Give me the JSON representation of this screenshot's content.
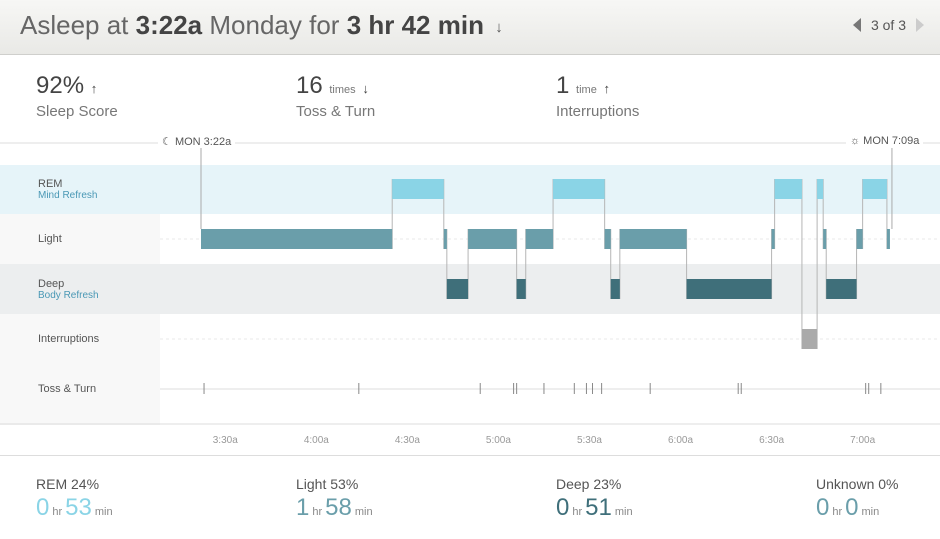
{
  "header": {
    "prefix": "Asleep at",
    "start_time": "3:22a",
    "day": "Monday",
    "for_word": "for",
    "duration": "3 hr 42 min",
    "pager": "3 of 3"
  },
  "stats": [
    {
      "value": "92%",
      "unit": "",
      "trend": "up",
      "label": "Sleep Score"
    },
    {
      "value": "16",
      "unit": "times",
      "trend": "down",
      "label": "Toss & Turn"
    },
    {
      "value": "1",
      "unit": "time",
      "trend": "up",
      "label": "Interruptions"
    }
  ],
  "markers": {
    "start": "MON 3:22a",
    "end": "MON 7:09a"
  },
  "rows": [
    {
      "label": "REM",
      "sub": "Mind Refresh"
    },
    {
      "label": "Light",
      "sub": ""
    },
    {
      "label": "Deep",
      "sub": "Body Refresh"
    },
    {
      "label": "Interruptions",
      "sub": ""
    },
    {
      "label": "Toss & Turn",
      "sub": ""
    }
  ],
  "time_ticks": [
    "3:30a",
    "4:00a",
    "4:30a",
    "5:00a",
    "5:30a",
    "6:00a",
    "6:30a",
    "7:00a"
  ],
  "colors": {
    "rem": "#8ad4e6",
    "light": "#6a9eaa",
    "deep": "#3f6f7a",
    "interruption": "#aaaaaa",
    "rem_band": "#e6f4f9",
    "deep_band": "#eceeef"
  },
  "chart_data": {
    "type": "hypnogram",
    "start_minutes": 202,
    "segments": [
      {
        "stage": "light",
        "start": 202,
        "end": 265
      },
      {
        "stage": "rem",
        "start": 265,
        "end": 282
      },
      {
        "stage": "light",
        "start": 282,
        "end": 283
      },
      {
        "stage": "deep",
        "start": 283,
        "end": 290
      },
      {
        "stage": "light",
        "start": 290,
        "end": 306
      },
      {
        "stage": "deep",
        "start": 306,
        "end": 309
      },
      {
        "stage": "light",
        "start": 309,
        "end": 318
      },
      {
        "stage": "rem",
        "start": 318,
        "end": 335
      },
      {
        "stage": "light",
        "start": 335,
        "end": 337
      },
      {
        "stage": "deep",
        "start": 337,
        "end": 340
      },
      {
        "stage": "light",
        "start": 340,
        "end": 362
      },
      {
        "stage": "deep",
        "start": 362,
        "end": 390
      },
      {
        "stage": "light",
        "start": 390,
        "end": 391
      },
      {
        "stage": "rem",
        "start": 391,
        "end": 400
      },
      {
        "stage": "interruption",
        "start": 400,
        "end": 405
      },
      {
        "stage": "rem",
        "start": 405,
        "end": 407
      },
      {
        "stage": "light",
        "start": 407,
        "end": 408
      },
      {
        "stage": "deep",
        "start": 408,
        "end": 418
      },
      {
        "stage": "light",
        "start": 418,
        "end": 420
      },
      {
        "stage": "rem",
        "start": 420,
        "end": 428
      },
      {
        "stage": "light",
        "start": 428,
        "end": 429
      }
    ],
    "toss_turn_minutes": [
      203,
      254,
      294,
      305,
      306,
      315,
      325,
      329,
      331,
      334,
      350,
      379,
      380,
      421,
      422,
      426
    ]
  },
  "summary": [
    {
      "label": "REM 24%",
      "hr": "0",
      "hr_unit": "hr",
      "min": "53",
      "min_unit": "min",
      "color": "#8ad4e6"
    },
    {
      "label": "Light 53%",
      "hr": "1",
      "hr_unit": "hr",
      "min": "58",
      "min_unit": "min",
      "color": "#6a9eaa"
    },
    {
      "label": "Deep 23%",
      "hr": "0",
      "hr_unit": "hr",
      "min": "51",
      "min_unit": "min",
      "color": "#3f6f7a"
    },
    {
      "label": "Unknown 0%",
      "hr": "0",
      "hr_unit": "hr",
      "min": "0",
      "min_unit": "min",
      "color": "#6a9eaa"
    }
  ]
}
